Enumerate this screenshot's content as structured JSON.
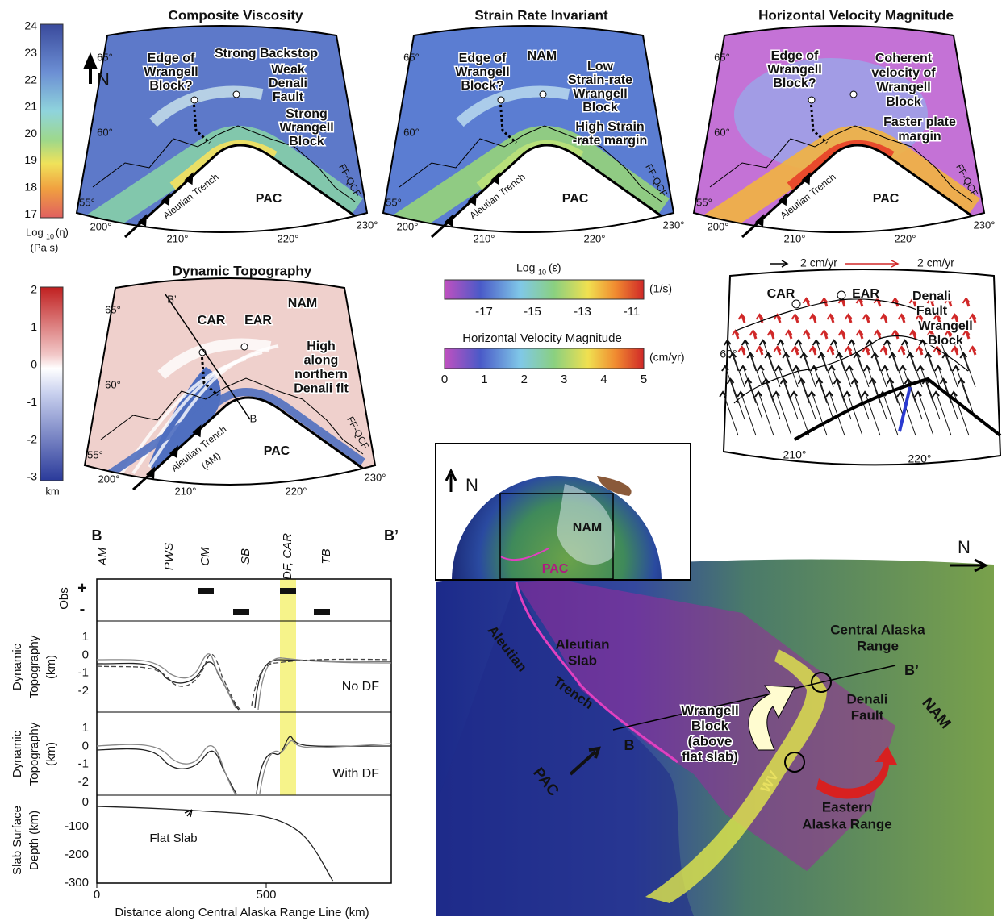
{
  "maps": [
    {
      "title": "Composite Viscosity",
      "annotations": [
        [
          "Edge of",
          "Wrangell",
          "Block?"
        ],
        [
          "Strong Backstop"
        ],
        [
          "Weak",
          "Denali",
          "Fault"
        ],
        [
          "Strong",
          "Wrangell",
          "Block"
        ]
      ],
      "plate": "PAC",
      "trench": "Aleutian Trench",
      "fault": "FF-QCF",
      "lat_ticks": [
        "65°",
        "60°",
        "55°"
      ],
      "lon_ticks": [
        "200°",
        "210°",
        "220°",
        "230°"
      ]
    },
    {
      "title": "Strain Rate Invariant",
      "annotations": [
        [
          "Edge of",
          "Wrangell",
          "Block?"
        ],
        [
          "NAM"
        ],
        [
          "Low",
          "Strain-rate",
          "Wrangell",
          "Block"
        ],
        [
          "High Strain",
          "-rate margin"
        ]
      ],
      "plate": "PAC",
      "trench": "Aleutian Trench",
      "fault": "FF-QCF",
      "lat_ticks": [
        "65°",
        "60°",
        "55°"
      ],
      "lon_ticks": [
        "200°",
        "210°",
        "220°",
        "230°"
      ]
    },
    {
      "title": "Horizontal Velocity Magnitude",
      "annotations": [
        [
          "Edge of",
          "Wrangell",
          "Block?"
        ],
        [
          "Coherent",
          "velocity of",
          "Wrangell",
          "Block"
        ],
        [
          "Faster plate",
          "margin"
        ]
      ],
      "plate": "PAC",
      "trench": "Aleutian Trench",
      "fault": "FF-QCF",
      "lat_ticks": [
        "65°",
        "60°",
        "55°"
      ],
      "lon_ticks": [
        "200°",
        "210°",
        "220°",
        "230°"
      ]
    },
    {
      "title": "Dynamic Topography",
      "annotations": [
        [
          "NAM"
        ],
        [
          "CAR"
        ],
        [
          "EAR"
        ],
        [
          "High",
          "along",
          "northern",
          "Denali flt"
        ],
        [
          "B’"
        ],
        [
          "B"
        ],
        [
          "(AM)"
        ]
      ],
      "plate": "PAC",
      "trench": "Aleutian Trench",
      "fault": "FF-QCF",
      "lat_ticks": [
        "65°",
        "60°",
        "55°"
      ],
      "lon_ticks": [
        "200°",
        "210°",
        "220°",
        "230°"
      ]
    }
  ],
  "north_arrow": "N",
  "viscosity_scale": {
    "ticks": [
      24,
      23,
      22,
      21,
      20,
      19,
      18,
      17
    ],
    "label": "Log",
    "label_sub": "10",
    "label_var": "(η)",
    "unit": "(Pa s)"
  },
  "topography_scale": {
    "ticks": [
      2,
      1,
      0,
      -1,
      -2,
      -3
    ],
    "unit": "km"
  },
  "strain_scale": {
    "label": "Log",
    "label_sub": "10",
    "label_var": "(ε̇)",
    "ticks": [
      -17,
      -15,
      -13,
      -11
    ],
    "unit": "(1/s)"
  },
  "velocity_scale": {
    "title": "Horizontal Velocity Magnitude",
    "ticks": [
      0,
      1,
      2,
      3,
      4,
      5
    ],
    "unit": "(cm/yr)"
  },
  "velocity_vectors": {
    "legend": [
      "2 cm/yr",
      "2 cm/yr"
    ],
    "labels": [
      [
        "CAR"
      ],
      [
        "EAR"
      ],
      [
        "Denali",
        "Fault"
      ],
      [
        "Wrangell",
        "Block"
      ]
    ],
    "lat_ticks": [
      "60°"
    ],
    "lon_ticks": [
      "210°",
      "220°"
    ]
  },
  "profile": {
    "start": "B",
    "end": "B’",
    "features": [
      "AM",
      "PWS",
      "CM",
      "SB",
      "DF, CAR",
      "TB"
    ],
    "obs_label": "Obs",
    "obs_signs": [
      "+",
      "-"
    ],
    "topo_label": [
      "Dynamic",
      "Topography",
      "(km)"
    ],
    "topo_ticks": [
      1,
      0,
      -1,
      -2
    ],
    "panels": [
      "No DF",
      "With DF"
    ],
    "slab_label": [
      "Slab Surface",
      "Depth (km)"
    ],
    "slab_ticks": [
      0,
      -100,
      -200,
      -300
    ],
    "slab_note": "Flat Slab",
    "x_ticks": [
      0,
      500
    ],
    "x_label": "Distance along Central Alaska Range Line (km)"
  },
  "block_diagram": {
    "north": "N",
    "aleutian_slab": [
      "Aleutian",
      "Slab"
    ],
    "trench": [
      "Aleutian",
      "Trench"
    ],
    "pac": "PAC",
    "b": "B",
    "b_prime": "B’",
    "central": [
      "Central Alaska",
      "Range"
    ],
    "denali": [
      "Denali",
      "Fault"
    ],
    "nam": "NAM",
    "wrangell": [
      "Wrangell",
      "Block",
      "(above",
      "flat slab)"
    ],
    "wv": "WV",
    "eastern": [
      "Eastern",
      "Alaska Range"
    ],
    "inset": {
      "north": "N",
      "nam": "NAM",
      "pac": "PAC"
    }
  }
}
